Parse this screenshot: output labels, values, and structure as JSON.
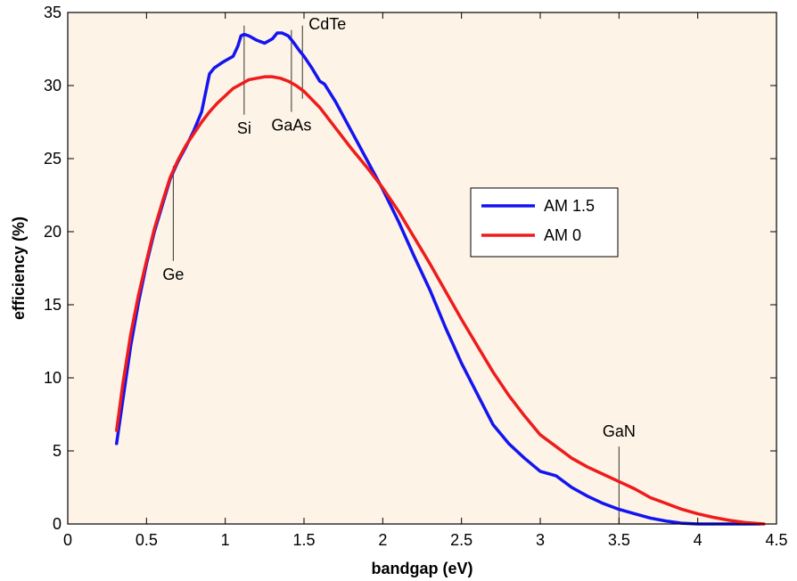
{
  "chart_data": {
    "type": "line",
    "title": "",
    "xlabel": "bandgap (eV)",
    "ylabel": "efficiency (%)",
    "xlim": [
      0,
      4.5
    ],
    "ylim": [
      0,
      35
    ],
    "xticks": [
      0,
      0.5,
      1,
      1.5,
      2,
      2.5,
      3,
      3.5,
      4,
      4.5
    ],
    "xtick_labels": [
      "0",
      "0.5",
      "1",
      "1.5",
      "2",
      "2.5",
      "3",
      "3.5",
      "4",
      "4.5"
    ],
    "yticks": [
      0,
      5,
      10,
      15,
      20,
      25,
      30,
      35
    ],
    "ytick_labels": [
      "0",
      "5",
      "10",
      "15",
      "20",
      "25",
      "30",
      "35"
    ],
    "grid": false,
    "legend_position": "right-center",
    "background_color": "#fdf3e6",
    "series": [
      {
        "name": "AM 1.5",
        "color": "#1414f0",
        "x": [
          0.31,
          0.35,
          0.4,
          0.45,
          0.5,
          0.55,
          0.6,
          0.65,
          0.7,
          0.75,
          0.8,
          0.85,
          0.9,
          0.93,
          0.97,
          1.0,
          1.05,
          1.08,
          1.1,
          1.12,
          1.15,
          1.2,
          1.25,
          1.3,
          1.33,
          1.36,
          1.4,
          1.43,
          1.47,
          1.5,
          1.55,
          1.6,
          1.63,
          1.7,
          1.8,
          1.9,
          2.0,
          2.1,
          2.2,
          2.3,
          2.4,
          2.5,
          2.6,
          2.7,
          2.8,
          2.9,
          3.0,
          3.1,
          3.2,
          3.3,
          3.4,
          3.5,
          3.6,
          3.7,
          3.8,
          3.9,
          4.0,
          4.1,
          4.2,
          4.3,
          4.4
        ],
        "y": [
          5.5,
          8.5,
          12.2,
          15.2,
          17.8,
          20.0,
          21.8,
          23.6,
          24.8,
          25.8,
          26.9,
          28.2,
          30.8,
          31.2,
          31.5,
          31.7,
          32.0,
          32.7,
          33.4,
          33.5,
          33.4,
          33.1,
          32.9,
          33.2,
          33.6,
          33.6,
          33.4,
          33.0,
          32.4,
          32.0,
          31.2,
          30.3,
          30.1,
          28.9,
          26.9,
          24.9,
          22.9,
          20.7,
          18.3,
          16.0,
          13.4,
          11.0,
          8.9,
          6.8,
          5.5,
          4.5,
          3.6,
          3.3,
          2.5,
          1.9,
          1.4,
          1.0,
          0.7,
          0.4,
          0.2,
          0.05,
          0.0,
          0.0,
          0.0,
          0.0,
          0.0
        ]
      },
      {
        "name": "AM 0",
        "color": "#ee1c1c",
        "x": [
          0.31,
          0.35,
          0.4,
          0.45,
          0.5,
          0.55,
          0.6,
          0.65,
          0.7,
          0.75,
          0.8,
          0.85,
          0.9,
          0.95,
          1.0,
          1.05,
          1.1,
          1.15,
          1.2,
          1.25,
          1.3,
          1.35,
          1.4,
          1.45,
          1.5,
          1.6,
          1.7,
          1.8,
          1.9,
          2.0,
          2.1,
          2.2,
          2.3,
          2.4,
          2.5,
          2.6,
          2.7,
          2.8,
          2.9,
          3.0,
          3.1,
          3.2,
          3.3,
          3.4,
          3.5,
          3.6,
          3.7,
          3.8,
          3.9,
          4.0,
          4.1,
          4.2,
          4.3,
          4.42
        ],
        "y": [
          6.4,
          9.6,
          13.0,
          15.7,
          18.0,
          20.2,
          22.0,
          23.7,
          24.9,
          25.9,
          26.7,
          27.5,
          28.2,
          28.8,
          29.3,
          29.8,
          30.1,
          30.4,
          30.5,
          30.6,
          30.6,
          30.5,
          30.3,
          30.0,
          29.6,
          28.5,
          27.1,
          25.7,
          24.4,
          23.0,
          21.4,
          19.6,
          17.8,
          15.9,
          14.0,
          12.2,
          10.4,
          8.8,
          7.4,
          6.1,
          5.3,
          4.5,
          3.9,
          3.4,
          2.9,
          2.4,
          1.8,
          1.4,
          1.0,
          0.7,
          0.45,
          0.25,
          0.1,
          0.0
        ]
      }
    ],
    "annotations": [
      {
        "label": "Ge",
        "x": 0.67,
        "y_top": 24.5,
        "y_bottom": 18.0,
        "label_pos": "below"
      },
      {
        "label": "Si",
        "x": 1.12,
        "y_top": 34.1,
        "y_bottom": 28.0,
        "label_pos": "below"
      },
      {
        "label": "GaAs",
        "x": 1.42,
        "y_top": 33.8,
        "y_bottom": 28.2,
        "label_pos": "below"
      },
      {
        "label": "CdTe",
        "x": 1.49,
        "y_top": 34.1,
        "y_bottom": 29.1,
        "label_pos": "above"
      },
      {
        "label": "GaN",
        "x": 3.5,
        "y_top": 5.3,
        "y_bottom": 0.0,
        "label_pos": "above"
      }
    ]
  }
}
